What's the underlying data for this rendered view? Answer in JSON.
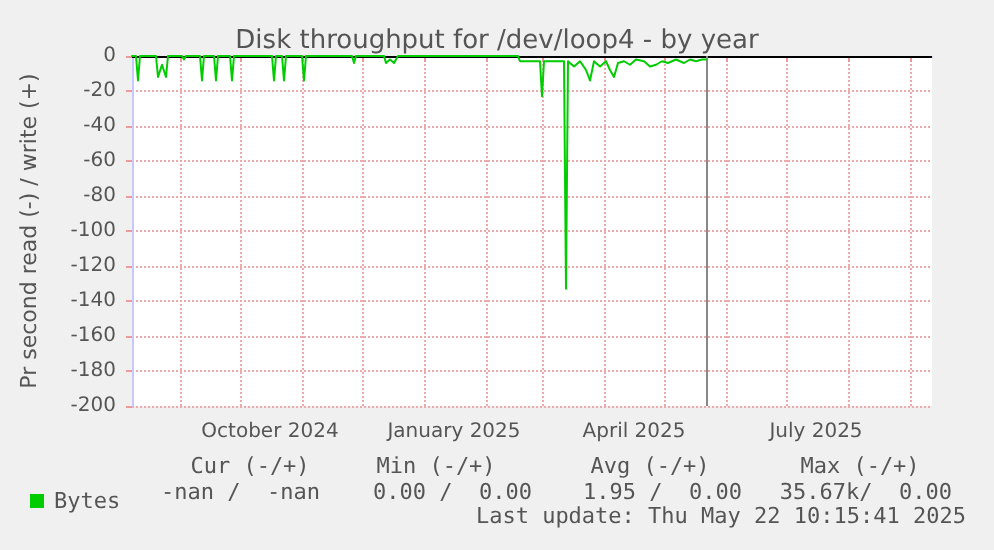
{
  "chart_data": {
    "type": "line",
    "title": "Disk throughput for /dev/loop4 - by year",
    "ylabel": "Pr second read (-) / write (+)",
    "xlim": [
      "2024-08-08",
      "2025-09-12"
    ],
    "xticks": [
      {
        "value": "2024-09-01",
        "label": null
      },
      {
        "value": "2024-10-01",
        "label": null
      },
      {
        "value": "2024-10-16",
        "label": "October 2024"
      },
      {
        "value": "2024-11-01",
        "label": null
      },
      {
        "value": "2024-12-01",
        "label": null
      },
      {
        "value": "2025-01-01",
        "label": null
      },
      {
        "value": "2025-01-16",
        "label": "January 2025"
      },
      {
        "value": "2025-02-01",
        "label": null
      },
      {
        "value": "2025-03-01",
        "label": null
      },
      {
        "value": "2025-04-01",
        "label": null
      },
      {
        "value": "2025-04-16",
        "label": "April 2025"
      },
      {
        "value": "2025-05-01",
        "label": null
      },
      {
        "value": "2025-06-01",
        "label": null
      },
      {
        "value": "2025-07-01",
        "label": null
      },
      {
        "value": "2025-07-16",
        "label": "July 2025"
      },
      {
        "value": "2025-08-01",
        "label": null
      },
      {
        "value": "2025-09-01",
        "label": null
      }
    ],
    "ylim": [
      -200,
      0
    ],
    "yticks": [
      -200,
      -180,
      -160,
      -140,
      -120,
      -100,
      -80,
      -60,
      -40,
      -20,
      0
    ],
    "grid": true,
    "legend": "bottom left",
    "marker": "none",
    "line_style": "solid",
    "x": [
      "2024-08-08",
      "2024-08-10",
      "2024-08-11",
      "2024-08-12",
      "2024-08-20",
      "2024-08-21",
      "2024-08-23",
      "2024-08-25",
      "2024-08-26",
      "2024-09-02",
      "2024-09-03",
      "2024-09-04",
      "2024-09-11",
      "2024-09-12",
      "2024-09-13",
      "2024-09-18",
      "2024-09-19",
      "2024-09-20",
      "2024-09-26",
      "2024-09-27",
      "2024-09-28",
      "2024-10-17",
      "2024-10-18",
      "2024-10-19",
      "2024-10-22",
      "2024-10-23",
      "2024-10-24",
      "2024-11-01",
      "2024-11-02",
      "2024-11-03",
      "2024-11-26",
      "2024-11-27",
      "2024-11-28",
      "2024-12-12",
      "2024-12-13",
      "2024-12-15",
      "2024-12-17",
      "2024-12-19",
      "2025-02-17",
      "2025-02-18",
      "2025-02-28",
      "2025-03-01",
      "2025-03-02",
      "2025-03-12",
      "2025-03-13",
      "2025-03-14",
      "2025-03-17",
      "2025-03-20",
      "2025-03-23",
      "2025-03-25",
      "2025-03-27",
      "2025-03-30",
      "2025-04-02",
      "2025-04-04",
      "2025-04-06",
      "2025-04-08",
      "2025-04-11",
      "2025-04-14",
      "2025-04-17",
      "2025-04-21",
      "2025-04-24",
      "2025-04-27",
      "2025-04-30",
      "2025-05-03",
      "2025-05-07",
      "2025-05-11",
      "2025-05-14",
      "2025-05-17",
      "2025-05-20",
      "2025-05-22"
    ],
    "series": [
      {
        "name": "Bytes",
        "color": "#00cc00",
        "values": [
          0,
          0,
          -14,
          0,
          0,
          -12,
          -5,
          -12,
          0,
          0,
          -2,
          0,
          0,
          -14,
          0,
          0,
          -14,
          0,
          0,
          -14,
          0,
          0,
          -14,
          0,
          0,
          -14,
          0,
          0,
          -14,
          0,
          0,
          -4,
          0,
          0,
          -4,
          -2,
          -4,
          0,
          0,
          -3,
          -3,
          -23,
          -3,
          -3,
          -133,
          -3,
          -6,
          -3,
          -8,
          -14,
          -3,
          -6,
          -3,
          -8,
          -12,
          -4,
          -3,
          -5,
          -2,
          -3,
          -6,
          -5,
          -3,
          -4,
          -2,
          -4,
          -2,
          -3,
          -2,
          -2
        ]
      }
    ],
    "ref_lines": [
      {
        "axis": "y",
        "value": 0,
        "color": "#000000"
      },
      {
        "axis": "x",
        "value": "2025-05-22",
        "color": "#888888"
      }
    ],
    "annotations": [
      "Cur (-/+)",
      "Min (-/+)",
      "Avg (-/+)",
      "Max (-/+)",
      "-nan /  -nan",
      "0.00 /  0.00",
      "1.95 /  0.00",
      "35.67k/  0.00",
      "Last update: Thu May 22 10:15:41 2025"
    ]
  }
}
